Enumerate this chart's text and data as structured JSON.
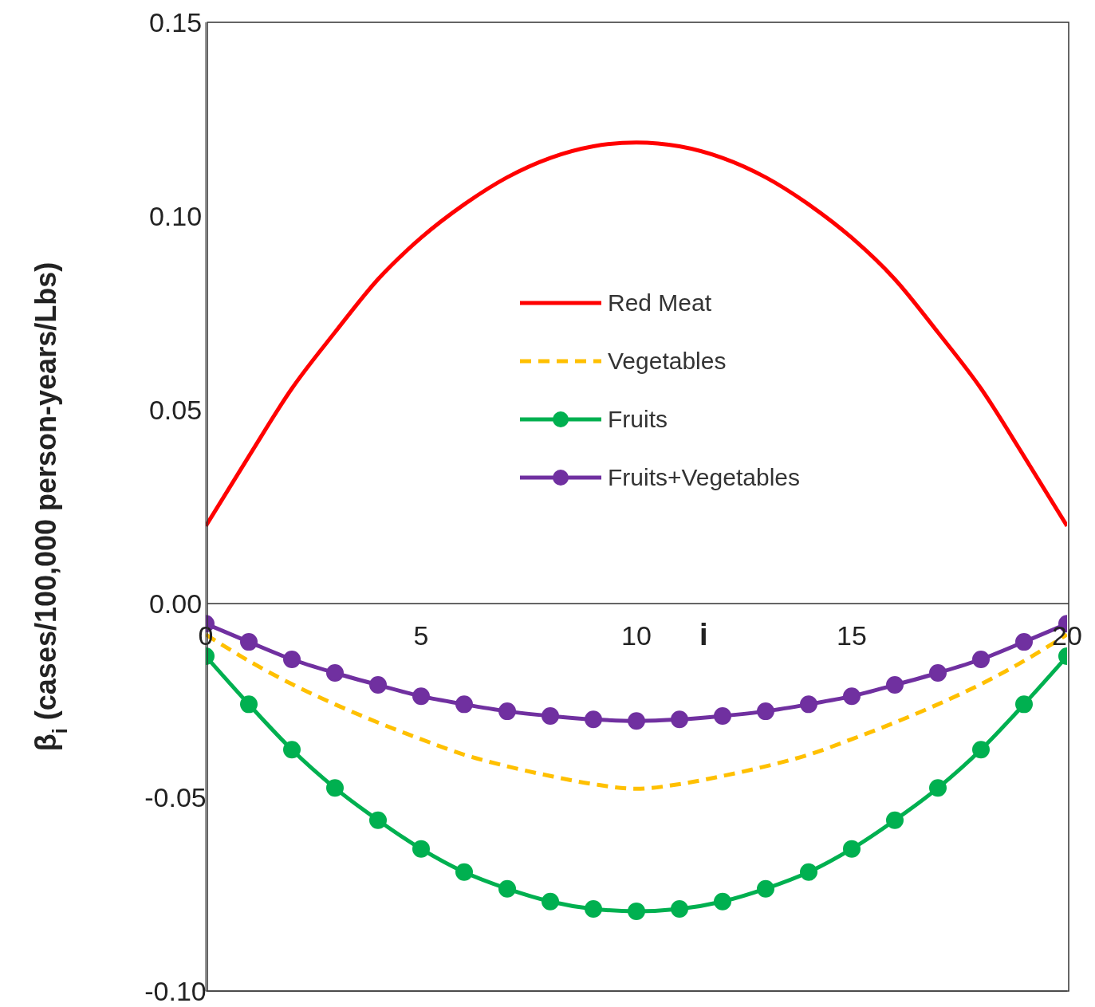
{
  "chart_data": {
    "type": "line",
    "ylabel": "β$_{i}$ (cases/100,000 person-years/Lbs)",
    "xlabel": "i",
    "x": [
      0,
      1,
      2,
      3,
      4,
      5,
      6,
      7,
      8,
      9,
      10,
      11,
      12,
      13,
      14,
      15,
      16,
      17,
      18,
      19,
      20
    ],
    "series": [
      {
        "name": "Red Meat",
        "color": "#ff0000",
        "marker": "none",
        "line_style": "solid",
        "values": [
          0.02,
          0.038,
          0.0555,
          0.07,
          0.0837,
          0.0944,
          0.103,
          0.11,
          0.115,
          0.118,
          0.119,
          0.118,
          0.115,
          0.11,
          0.103,
          0.0944,
          0.0837,
          0.07,
          0.0555,
          0.038,
          0.02
        ]
      },
      {
        "name": "Vegetables",
        "color": "#ffc000",
        "marker": "none",
        "line_style": "dashed",
        "values": [
          -0.008,
          -0.0148,
          -0.0208,
          -0.026,
          -0.0307,
          -0.035,
          -0.039,
          -0.042,
          -0.0445,
          -0.0466,
          -0.0478,
          -0.0466,
          -0.0445,
          -0.042,
          -0.039,
          -0.035,
          -0.0307,
          -0.026,
          -0.0208,
          -0.0148,
          -0.008
        ]
      },
      {
        "name": "Fruits",
        "color": "#00b050",
        "marker": "circle",
        "line_style": "solid",
        "values": [
          -0.0136,
          -0.026,
          -0.0377,
          -0.0476,
          -0.0559,
          -0.0633,
          -0.0693,
          -0.0736,
          -0.0769,
          -0.0788,
          -0.0794,
          -0.0788,
          -0.0769,
          -0.0736,
          -0.0693,
          -0.0633,
          -0.0559,
          -0.0476,
          -0.0377,
          -0.026,
          -0.0136
        ]
      },
      {
        "name": "Fruits+Vegetables",
        "color": "#7030a0",
        "marker": "circle",
        "line_style": "solid",
        "values": [
          -0.0052,
          -0.0099,
          -0.0144,
          -0.0179,
          -0.021,
          -0.0239,
          -0.026,
          -0.0278,
          -0.029,
          -0.0299,
          -0.0303,
          -0.0299,
          -0.029,
          -0.0278,
          -0.026,
          -0.0239,
          -0.021,
          -0.0179,
          -0.0144,
          -0.0099,
          -0.0052
        ]
      }
    ],
    "xlim": [
      0,
      20
    ],
    "xticks": [
      0,
      5,
      10,
      15,
      20
    ],
    "ylim": [
      -0.1,
      0.15
    ],
    "yticks": [
      {
        "value": -0.1,
        "label": "-0.10"
      },
      {
        "value": -0.05,
        "label": "-0.05"
      },
      {
        "value": 0,
        "label": "0.00"
      },
      {
        "value": 0.05,
        "label": "0.05"
      },
      {
        "value": 0.1,
        "label": "0.10"
      },
      {
        "value": 0.15,
        "label": "0.15"
      }
    ],
    "grid": false,
    "legend": "center"
  }
}
